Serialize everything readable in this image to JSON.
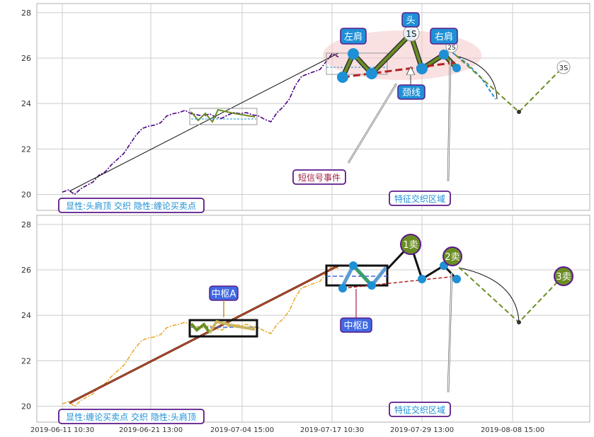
{
  "colors": {
    "grid": "#cccccc",
    "frame": "#b0b0b0",
    "purple": "#4b0082",
    "orange": "#e8a930",
    "olive": "#6b8e23",
    "blue": "#1e90d6",
    "darkred": "#b22222",
    "label_purple": "#5b1a8a",
    "label_text_blue": "#1e90d6",
    "label_text_red": "#a0204a",
    "royal": "#4169e1"
  },
  "chart_data": [
    {
      "type": "line",
      "panel": "top",
      "ylim": [
        19.3,
        28.4
      ],
      "yticks": [
        20,
        22,
        24,
        26,
        28
      ],
      "x_tick_labels": [
        "2019-06-11 10:30",
        "2019-06-21 13:00",
        "2019-07-04 15:00",
        "2019-07-17 10:30",
        "2019-07-29 13:00",
        "2019-08-08 15:00"
      ],
      "price_series": [
        [
          0,
          20.1
        ],
        [
          1,
          20.2
        ],
        [
          2,
          20.0
        ],
        [
          3,
          20.25
        ],
        [
          4,
          20.4
        ],
        [
          5,
          20.55
        ],
        [
          6,
          20.85
        ],
        [
          7,
          21.0
        ],
        [
          8,
          21.3
        ],
        [
          9,
          21.55
        ],
        [
          10,
          21.8
        ],
        [
          11,
          22.2
        ],
        [
          12,
          22.6
        ],
        [
          13,
          22.9
        ],
        [
          14,
          23.0
        ],
        [
          15,
          23.05
        ],
        [
          16,
          23.15
        ],
        [
          17,
          23.45
        ],
        [
          18,
          23.55
        ],
        [
          19,
          23.6
        ],
        [
          20,
          23.7
        ],
        [
          21,
          23.55
        ],
        [
          22,
          23.5
        ],
        [
          23,
          23.45
        ],
        [
          24,
          23.55
        ],
        [
          25,
          23.4
        ],
        [
          26,
          23.35
        ],
        [
          27,
          23.5
        ],
        [
          28,
          23.6
        ],
        [
          29,
          23.55
        ],
        [
          30,
          23.6
        ],
        [
          31,
          23.5
        ],
        [
          32,
          23.45
        ],
        [
          33,
          23.3
        ],
        [
          34,
          23.2
        ],
        [
          35,
          23.6
        ],
        [
          36,
          23.85
        ],
        [
          37,
          24.2
        ],
        [
          38,
          24.8
        ],
        [
          39,
          25.2
        ],
        [
          40,
          25.3
        ],
        [
          41,
          25.4
        ],
        [
          42,
          25.5
        ],
        [
          43,
          25.85
        ],
        [
          44,
          26.2
        ],
        [
          45,
          26.05
        ]
      ],
      "annotations": [
        "显性:头肩顶 交织 隐性:缠论买卖点",
        "短信号事件",
        "特征交织区域",
        "左肩",
        "头",
        "右肩",
        "颈线"
      ],
      "markers": [
        "1S",
        "2S",
        "3S"
      ]
    },
    {
      "type": "line",
      "panel": "bottom",
      "ylim": [
        19.3,
        28.4
      ],
      "yticks": [
        20,
        22,
        24,
        26,
        28
      ],
      "annotations": [
        "显性:缠论买卖点 交织 隐性:头肩顶",
        "中枢A",
        "中枢B",
        "特征交织区域"
      ],
      "markers": [
        "1卖",
        "2卖",
        "3卖"
      ]
    }
  ],
  "labels": {
    "top_caption": "显性:头肩顶 交织 隐性:缠论买卖点",
    "bottom_caption": "显性:缠论买卖点 交织 隐性:头肩顶",
    "signal_event": "短信号事件",
    "feature_zone": "特征交织区域",
    "left_shoulder": "左肩",
    "head": "头",
    "right_shoulder": "右肩",
    "neckline": "颈线",
    "hub_a": "中枢A",
    "hub_b": "中枢B",
    "s1": "1S",
    "s2": "2S",
    "s3": "3S",
    "sell1": "1卖",
    "sell2": "2卖",
    "sell3": "3卖"
  }
}
